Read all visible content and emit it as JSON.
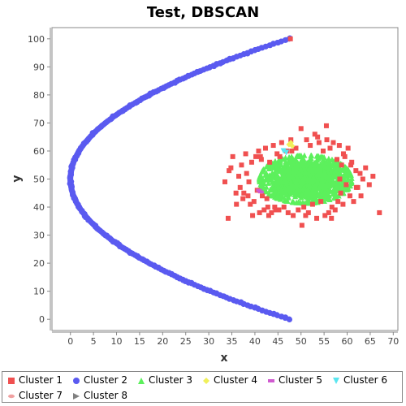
{
  "chart_data": {
    "type": "scatter",
    "title": "Test, DBSCAN",
    "xlabel": "x",
    "ylabel": "y",
    "xlim": [
      -4,
      71
    ],
    "ylim": [
      -4,
      104
    ],
    "xticks": [
      0,
      5,
      10,
      15,
      20,
      25,
      30,
      35,
      40,
      45,
      50,
      55,
      60,
      65,
      70
    ],
    "yticks": [
      0,
      10,
      20,
      30,
      40,
      50,
      60,
      70,
      80,
      90,
      100
    ],
    "grid": false,
    "legend_position": "bottom",
    "series": [
      {
        "name": "Cluster 1",
        "marker": "square",
        "color": "#F05050",
        "x": [
          47.7,
          33.5,
          34.2,
          34.8,
          35.2,
          35.9,
          36.5,
          36.8,
          37.1,
          37.4,
          38.0,
          38.2,
          38.5,
          38.7,
          39.0,
          39.3,
          39.8,
          40.2,
          40.5,
          40.8,
          41.0,
          41.4,
          41.6,
          42.0,
          42.3,
          42.6,
          43.0,
          43.2,
          43.6,
          44.0,
          44.3,
          44.8,
          45.2,
          45.8,
          46.3,
          46.9,
          47.2,
          47.8,
          48.3,
          48.9,
          49.4,
          50.0,
          50.6,
          51.2,
          51.6,
          52.0,
          52.5,
          53.0,
          53.4,
          53.9,
          54.3,
          54.8,
          55.2,
          55.6,
          56.0,
          56.3,
          56.7,
          57.0,
          57.4,
          57.8,
          58.0,
          58.3,
          58.6,
          58.8,
          59.1,
          59.5,
          59.8,
          60.2,
          60.6,
          61.0,
          61.4,
          61.9,
          62.3,
          62.8,
          63.4,
          64.0,
          64.8,
          65.6,
          67.0,
          34.4,
          36.0,
          39.5,
          42.8,
          45.4,
          50.2,
          53.6,
          56.6,
          59.2,
          62.0,
          55.5,
          51.0,
          48.0,
          44.5,
          41.2,
          37.6,
          60.8,
          58.4,
          63.0
        ],
        "y": [
          100,
          49,
          36,
          54,
          58,
          45,
          51,
          47,
          55,
          43,
          59,
          52,
          44,
          49,
          41,
          56,
          42,
          58,
          46,
          60,
          38,
          57,
          44,
          39,
          61,
          43,
          37,
          56,
          38,
          62,
          40,
          59,
          39,
          63,
          40,
          60,
          38,
          64,
          37,
          61,
          39,
          68,
          40,
          64,
          38,
          62,
          41,
          66,
          36,
          63,
          42,
          60,
          37,
          64,
          38,
          61,
          40,
          63,
          39,
          57,
          42,
          62,
          45,
          55,
          41,
          58,
          48,
          61,
          44,
          56,
          42,
          53,
          47,
          52,
          50,
          54,
          48,
          51,
          38,
          53,
          41,
          37,
          40,
          58,
          33.5,
          65,
          36,
          59,
          47,
          69,
          37,
          60,
          39,
          58,
          45,
          55,
          50,
          44
        ]
      },
      {
        "name": "Cluster 2",
        "marker": "circle",
        "color": "#5A5AF0",
        "x": [],
        "y": [],
        "generator": {
          "shape": "parabola",
          "x_formula": "(y-50)^2/52.7",
          "y_range": [
            0,
            100
          ],
          "points": 220
        }
      },
      {
        "name": "Cluster 3",
        "marker": "triangle-up",
        "color": "#5CF05C",
        "x": [],
        "y": [],
        "generator": {
          "shape": "ellipse",
          "center": [
            51,
            50
          ],
          "radii": [
            10,
            8.5
          ],
          "points": 1400
        }
      },
      {
        "name": "Cluster 4",
        "marker": "diamond",
        "color": "#F0F05A",
        "x": [
          47.8,
          47.4,
          48.1
        ],
        "y": [
          63,
          62.3,
          61.8
        ]
      },
      {
        "name": "Cluster 5",
        "marker": "rect-wide",
        "color": "#D05AD0",
        "x": [
          40.9,
          41.3
        ],
        "y": [
          46,
          45.4
        ]
      },
      {
        "name": "Cluster 6",
        "marker": "triangle-down",
        "color": "#5AE6F0",
        "x": [
          46.2,
          46.8
        ],
        "y": [
          60,
          59.4
        ]
      },
      {
        "name": "Cluster 7",
        "marker": "ellipse-wide",
        "color": "#F0A0A0",
        "x": [],
        "y": []
      },
      {
        "name": "Cluster 8",
        "marker": "triangle-right",
        "color": "#808080",
        "x": [],
        "y": []
      }
    ]
  }
}
